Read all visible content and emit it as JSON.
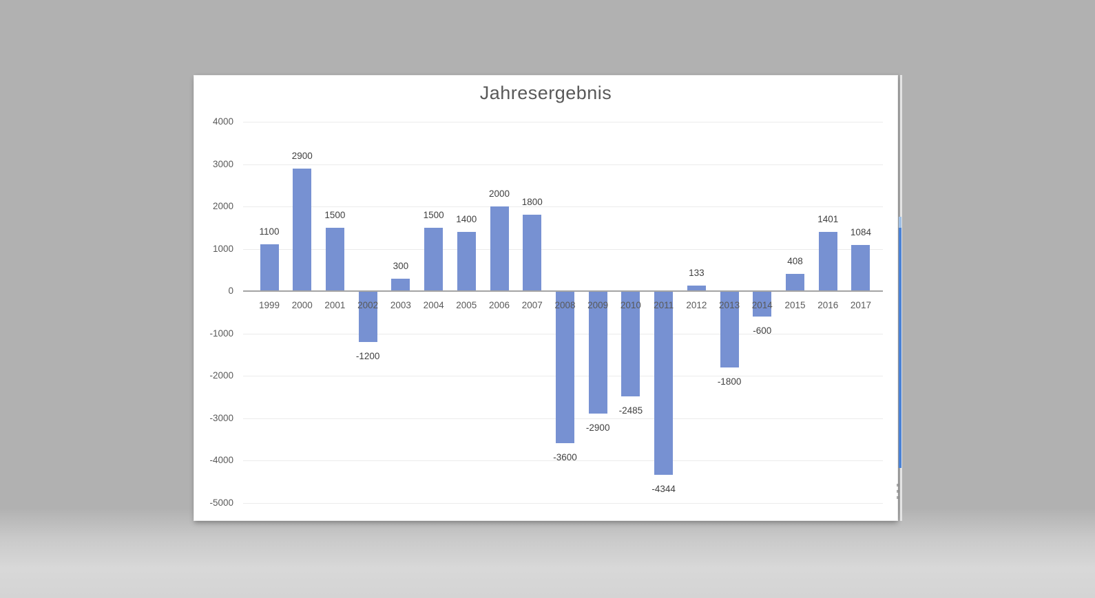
{
  "desktop": {
    "background_top": "#b1b1b1",
    "background_bottom": "#d6d6d6"
  },
  "slide": {
    "background": "#ffffff"
  },
  "chart_data": {
    "type": "bar",
    "title": "Jahresergebnis",
    "categories": [
      "1999",
      "2000",
      "2001",
      "2002",
      "2003",
      "2004",
      "2005",
      "2006",
      "2007",
      "2008",
      "2009",
      "2010",
      "2011",
      "2012",
      "2013",
      "2014",
      "2015",
      "2016",
      "2017"
    ],
    "values": [
      1100,
      2900,
      1500,
      -1200,
      300,
      1500,
      1400,
      2000,
      1800,
      -3600,
      -2900,
      -2485,
      -4344,
      133,
      -1800,
      -600,
      408,
      1401,
      1084
    ],
    "data_labels": [
      1100,
      2900,
      1500,
      -1200,
      300,
      1500,
      1400,
      2000,
      1800,
      -3600,
      -2900,
      -2485,
      -4344,
      133,
      -1800,
      -600,
      408,
      1401,
      1084
    ],
    "xlabel": "",
    "ylabel": "",
    "ylim": [
      -5000,
      4000
    ],
    "yticks": [
      4000,
      3000,
      2000,
      1000,
      0,
      -1000,
      -2000,
      -3000,
      -4000,
      -5000
    ],
    "grid": true,
    "legend": "none",
    "colors": {
      "bar": "#7791d2",
      "title": "#595959",
      "tick_label": "#595959",
      "value_label": "#3f3f3f",
      "gridline": "#ebebeb",
      "zero_line": "#a3a3a3"
    }
  },
  "artifacts": {
    "right_strip_color": "#4a82d6",
    "right_strip_cap_color": "#9fc0e6",
    "dots_color": "#909090"
  }
}
